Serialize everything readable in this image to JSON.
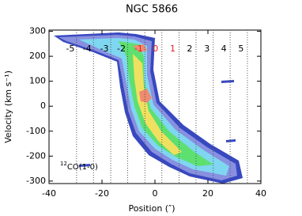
{
  "chart_data": {
    "type": "pv-diagram",
    "title": "NGC 5866",
    "x_label": "Position (″)",
    "y_label": "Velocity (km s⁻¹)",
    "xlim": [
      -40,
      40
    ],
    "ylim": [
      -310,
      305
    ],
    "xticks": [
      -40,
      -20,
      0,
      20,
      40
    ],
    "yticks": [
      -300,
      -200,
      -100,
      0,
      100,
      200,
      300
    ],
    "offsets": {
      "values": [
        -5,
        -4,
        -3,
        -2,
        -1,
        0,
        1,
        2,
        3,
        4,
        5
      ],
      "x": [
        -29.6,
        -23.2,
        -16.7,
        -10.3,
        -3.8,
        2.6,
        9.1,
        15.5,
        22,
        28.4,
        34.9
      ],
      "colors": [
        "#000000",
        "#000000",
        "#000000",
        "#000000",
        "#e02020",
        "#e02020",
        "#e02020",
        "#000000",
        "#000000",
        "#000000",
        "#000000"
      ]
    },
    "tracer": {
      "isotope": "12",
      "molecule": "CO(1-0)"
    }
  }
}
